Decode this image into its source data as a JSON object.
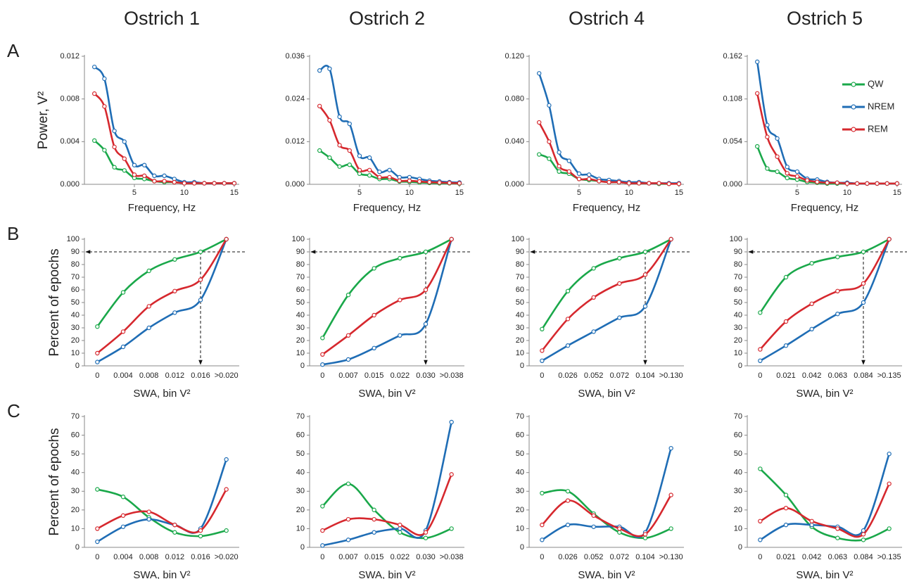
{
  "chart_data": [
    {
      "type": "line",
      "title": "Ostrich 1",
      "panel": "A",
      "xlabel": "Frequency, Hz",
      "ylabel": "Power, V²",
      "smooth": true,
      "x": [
        1,
        2,
        3,
        4,
        5,
        6,
        7,
        8,
        9,
        10,
        11,
        12,
        13,
        14,
        15
      ],
      "xlim": [
        0,
        15.5
      ],
      "xticks": [
        5,
        10,
        15
      ],
      "ylim": [
        0,
        0.012
      ],
      "yticks": [
        {
          "value": 0,
          "label": "0.000"
        },
        {
          "value": 0.004,
          "label": "0.004"
        },
        {
          "value": 0.008,
          "label": "0.008"
        },
        {
          "value": 0.012,
          "label": "0.012"
        }
      ],
      "series": [
        {
          "name": "QW",
          "color": "#1aa84a",
          "values": [
            0.0041,
            0.0032,
            0.0016,
            0.0013,
            0.0006,
            0.0005,
            0.0003,
            0.0002,
            0.0002,
            0.0001,
            0.0001,
            0.0001,
            0.0001,
            0.0001,
            0.0001
          ]
        },
        {
          "name": "NREM",
          "color": "#1f6db5",
          "values": [
            0.011,
            0.0099,
            0.005,
            0.004,
            0.0018,
            0.0018,
            0.0008,
            0.0008,
            0.0005,
            0.0002,
            0.0002,
            0.0001,
            0.0001,
            0.0001,
            0.0001
          ]
        },
        {
          "name": "REM",
          "color": "#d6282e",
          "values": [
            0.0085,
            0.0073,
            0.0035,
            0.0024,
            0.0009,
            0.0008,
            0.0003,
            0.0003,
            0.0002,
            0.0001,
            0.0001,
            0.0001,
            0.0001,
            0.0001,
            0.0001
          ]
        }
      ]
    },
    {
      "type": "line",
      "title": "Ostrich 2",
      "xlabel": "Frequency, Hz",
      "smooth": true,
      "x": [
        1,
        2,
        3,
        4,
        5,
        6,
        7,
        8,
        9,
        10,
        11,
        12,
        13,
        14,
        15
      ],
      "xlim": [
        0,
        15.5
      ],
      "xticks": [
        5,
        10,
        15
      ],
      "ylim": [
        0,
        0.036
      ],
      "yticks": [
        {
          "value": 0,
          "label": "0.000"
        },
        {
          "value": 0.012,
          "label": "0.012"
        },
        {
          "value": 0.024,
          "label": "0.024"
        },
        {
          "value": 0.036,
          "label": "0.036"
        }
      ],
      "series": [
        {
          "name": "QW",
          "color": "#1aa84a",
          "values": [
            0.0095,
            0.0075,
            0.005,
            0.0055,
            0.003,
            0.0025,
            0.0015,
            0.0015,
            0.0008,
            0.0007,
            0.0005,
            0.0004,
            0.0003,
            0.0003,
            0.0002
          ]
        },
        {
          "name": "NREM",
          "color": "#1f6db5",
          "values": [
            0.032,
            0.0325,
            0.019,
            0.017,
            0.008,
            0.0075,
            0.0035,
            0.004,
            0.002,
            0.002,
            0.0015,
            0.001,
            0.0008,
            0.0006,
            0.0005
          ]
        },
        {
          "name": "REM",
          "color": "#d6282e",
          "values": [
            0.022,
            0.018,
            0.011,
            0.0095,
            0.004,
            0.004,
            0.002,
            0.002,
            0.001,
            0.001,
            0.0008,
            0.0006,
            0.0005,
            0.0004,
            0.0003
          ]
        }
      ]
    },
    {
      "type": "line",
      "title": "Ostrich 4",
      "xlabel": "Frequency, Hz",
      "smooth": true,
      "x": [
        1,
        2,
        3,
        4,
        5,
        6,
        7,
        8,
        9,
        10,
        11,
        12,
        13,
        14,
        15
      ],
      "xlim": [
        0,
        15.5
      ],
      "xticks": [
        5,
        10,
        15
      ],
      "ylim": [
        0,
        0.12
      ],
      "yticks": [
        {
          "value": 0,
          "label": "0.000"
        },
        {
          "value": 0.04,
          "label": "0.040"
        },
        {
          "value": 0.08,
          "label": "0.080"
        },
        {
          "value": 0.12,
          "label": "0.120"
        }
      ],
      "series": [
        {
          "name": "QW",
          "color": "#1aa84a",
          "values": [
            0.028,
            0.024,
            0.012,
            0.01,
            0.005,
            0.004,
            0.003,
            0.002,
            0.002,
            0.001,
            0.001,
            0.001,
            0.0005,
            0.0005,
            0.0005
          ]
        },
        {
          "name": "NREM",
          "color": "#1f6db5",
          "values": [
            0.104,
            0.074,
            0.03,
            0.022,
            0.01,
            0.009,
            0.005,
            0.004,
            0.003,
            0.002,
            0.002,
            0.001,
            0.001,
            0.001,
            0.001
          ]
        },
        {
          "name": "REM",
          "color": "#d6282e",
          "values": [
            0.058,
            0.04,
            0.017,
            0.012,
            0.005,
            0.005,
            0.003,
            0.002,
            0.002,
            0.001,
            0.001,
            0.001,
            0.001,
            0.0005,
            0.0005
          ]
        }
      ]
    },
    {
      "type": "line",
      "title": "Ostrich 5",
      "xlabel": "Frequency, Hz",
      "smooth": true,
      "legend": "upper right",
      "x": [
        1,
        2,
        3,
        4,
        5,
        6,
        7,
        8,
        9,
        10,
        11,
        12,
        13,
        14,
        15
      ],
      "xlim": [
        0,
        15.5
      ],
      "xticks": [
        5,
        10,
        15
      ],
      "ylim": [
        0,
        0.162
      ],
      "yticks": [
        {
          "value": 0,
          "label": "0.000"
        },
        {
          "value": 0.054,
          "label": "0.054"
        },
        {
          "value": 0.108,
          "label": "0.108"
        },
        {
          "value": 0.162,
          "label": "0.162"
        }
      ],
      "series": [
        {
          "name": "QW",
          "color": "#1aa84a",
          "values": [
            0.048,
            0.02,
            0.016,
            0.008,
            0.006,
            0.003,
            0.002,
            0.001,
            0.001,
            0.001,
            0.001,
            0.001,
            0.001,
            0.001,
            0.001
          ]
        },
        {
          "name": "NREM",
          "color": "#1f6db5",
          "values": [
            0.155,
            0.075,
            0.058,
            0.022,
            0.016,
            0.007,
            0.006,
            0.003,
            0.002,
            0.002,
            0.001,
            0.001,
            0.001,
            0.001,
            0.001
          ]
        },
        {
          "name": "REM",
          "color": "#d6282e",
          "values": [
            0.115,
            0.06,
            0.035,
            0.014,
            0.01,
            0.005,
            0.003,
            0.002,
            0.002,
            0.001,
            0.001,
            0.001,
            0.001,
            0.001,
            0.001
          ]
        }
      ]
    },
    {
      "type": "line",
      "panel": "B",
      "xlabel": "SWA, bin V²",
      "ylabel": "Percent of epochs",
      "smooth": true,
      "reference_y": 90,
      "reference_category": "0.016",
      "categories": [
        "0",
        "0.004",
        "0.008",
        "0.012",
        "0.016",
        ">0.020"
      ],
      "ylim": [
        0,
        100
      ],
      "yticks": [
        0,
        10,
        20,
        30,
        40,
        50,
        60,
        70,
        80,
        90,
        100
      ],
      "series": [
        {
          "name": "QW",
          "color": "#1aa84a",
          "values": [
            31,
            58,
            75,
            84,
            90,
            100
          ]
        },
        {
          "name": "NREM",
          "color": "#1f6db5",
          "values": [
            3,
            15,
            30,
            42,
            52,
            100
          ]
        },
        {
          "name": "REM",
          "color": "#d6282e",
          "values": [
            10,
            27,
            47,
            59,
            68,
            100
          ]
        }
      ]
    },
    {
      "type": "line",
      "xlabel": "SWA, bin V²",
      "smooth": true,
      "reference_y": 90,
      "reference_category": "0.030",
      "categories": [
        "0",
        "0.007",
        "0.015",
        "0.022",
        "0.030",
        ">0.038"
      ],
      "ylim": [
        0,
        100
      ],
      "yticks": [
        0,
        10,
        20,
        30,
        40,
        50,
        60,
        70,
        80,
        90,
        100
      ],
      "series": [
        {
          "name": "QW",
          "color": "#1aa84a",
          "values": [
            22,
            56,
            77,
            85,
            90,
            100
          ]
        },
        {
          "name": "NREM",
          "color": "#1f6db5",
          "values": [
            1,
            5,
            14,
            24,
            33,
            100
          ]
        },
        {
          "name": "REM",
          "color": "#d6282e",
          "values": [
            9,
            24,
            40,
            52,
            60,
            100
          ]
        }
      ]
    },
    {
      "type": "line",
      "xlabel": "SWA, bin V²",
      "smooth": true,
      "reference_y": 90,
      "reference_category": "0.104",
      "categories": [
        "0",
        "0.026",
        "0.052",
        "0.072",
        "0.104",
        ">0.130"
      ],
      "ylim": [
        0,
        100
      ],
      "yticks": [
        0,
        10,
        20,
        30,
        40,
        50,
        60,
        70,
        80,
        90,
        100
      ],
      "series": [
        {
          "name": "QW",
          "color": "#1aa84a",
          "values": [
            29,
            59,
            77,
            85,
            90,
            100
          ]
        },
        {
          "name": "NREM",
          "color": "#1f6db5",
          "values": [
            4,
            16,
            27,
            38,
            47,
            100
          ]
        },
        {
          "name": "REM",
          "color": "#d6282e",
          "values": [
            12,
            37,
            54,
            65,
            72,
            100
          ]
        }
      ]
    },
    {
      "type": "line",
      "xlabel": "SWA, bin V²",
      "smooth": true,
      "reference_y": 90,
      "reference_category": "0.084",
      "categories": [
        "0",
        "0.021",
        "0.042",
        "0.063",
        "0.084",
        ">0.135"
      ],
      "ylim": [
        0,
        100
      ],
      "yticks": [
        0,
        10,
        20,
        30,
        40,
        50,
        60,
        70,
        80,
        90,
        100
      ],
      "series": [
        {
          "name": "QW",
          "color": "#1aa84a",
          "values": [
            42,
            70,
            81,
            86,
            90,
            100
          ]
        },
        {
          "name": "NREM",
          "color": "#1f6db5",
          "values": [
            4,
            16,
            29,
            41,
            50,
            100
          ]
        },
        {
          "name": "REM",
          "color": "#d6282e",
          "values": [
            13,
            35,
            49,
            59,
            65,
            100
          ]
        }
      ]
    },
    {
      "type": "line",
      "panel": "C",
      "xlabel": "SWA, bin V²",
      "ylabel": "Percent of epochs",
      "smooth": true,
      "categories": [
        "0",
        "0.004",
        "0.008",
        "0.012",
        "0.016",
        ">0.020"
      ],
      "ylim": [
        0,
        70
      ],
      "yticks": [
        0,
        10,
        20,
        30,
        40,
        50,
        60,
        70
      ],
      "series": [
        {
          "name": "QW",
          "color": "#1aa84a",
          "values": [
            31,
            27,
            16,
            8,
            6,
            9
          ]
        },
        {
          "name": "NREM",
          "color": "#1f6db5",
          "values": [
            3,
            11,
            15,
            12,
            10,
            47
          ]
        },
        {
          "name": "REM",
          "color": "#d6282e",
          "values": [
            10,
            17,
            19,
            12,
            9,
            31
          ]
        }
      ]
    },
    {
      "type": "line",
      "xlabel": "SWA, bin V²",
      "smooth": true,
      "categories": [
        "0",
        "0.007",
        "0.015",
        "0.022",
        "0.030",
        ">0.038"
      ],
      "ylim": [
        0,
        70
      ],
      "yticks": [
        0,
        10,
        20,
        30,
        40,
        50,
        60,
        70
      ],
      "series": [
        {
          "name": "QW",
          "color": "#1aa84a",
          "values": [
            22,
            34,
            20,
            8,
            5,
            10
          ]
        },
        {
          "name": "NREM",
          "color": "#1f6db5",
          "values": [
            1,
            4,
            8,
            10,
            9,
            67
          ]
        },
        {
          "name": "REM",
          "color": "#d6282e",
          "values": [
            9,
            15,
            15,
            12,
            8,
            39
          ]
        }
      ]
    },
    {
      "type": "line",
      "xlabel": "SWA, bin V²",
      "smooth": true,
      "categories": [
        "0",
        "0.026",
        "0.052",
        "0.072",
        "0.104",
        ">0.130"
      ],
      "ylim": [
        0,
        70
      ],
      "yticks": [
        0,
        10,
        20,
        30,
        40,
        50,
        60,
        70
      ],
      "series": [
        {
          "name": "QW",
          "color": "#1aa84a",
          "values": [
            29,
            30,
            18,
            8,
            5,
            10
          ]
        },
        {
          "name": "NREM",
          "color": "#1f6db5",
          "values": [
            4,
            12,
            11,
            11,
            8,
            53
          ]
        },
        {
          "name": "REM",
          "color": "#d6282e",
          "values": [
            12,
            25,
            17,
            10,
            7,
            28
          ]
        }
      ]
    },
    {
      "type": "line",
      "xlabel": "SWA, bin V²",
      "smooth": true,
      "categories": [
        "0",
        "0.021",
        "0.042",
        "0.063",
        "0.084",
        ">0.135"
      ],
      "ylim": [
        0,
        70
      ],
      "yticks": [
        0,
        10,
        20,
        30,
        40,
        50,
        60,
        70
      ],
      "series": [
        {
          "name": "QW",
          "color": "#1aa84a",
          "values": [
            42,
            28,
            11,
            5,
            4,
            10
          ]
        },
        {
          "name": "NREM",
          "color": "#1f6db5",
          "values": [
            4,
            12,
            12,
            11,
            9,
            50
          ]
        },
        {
          "name": "REM",
          "color": "#d6282e",
          "values": [
            14,
            21,
            14,
            10,
            7,
            34
          ]
        }
      ]
    }
  ]
}
